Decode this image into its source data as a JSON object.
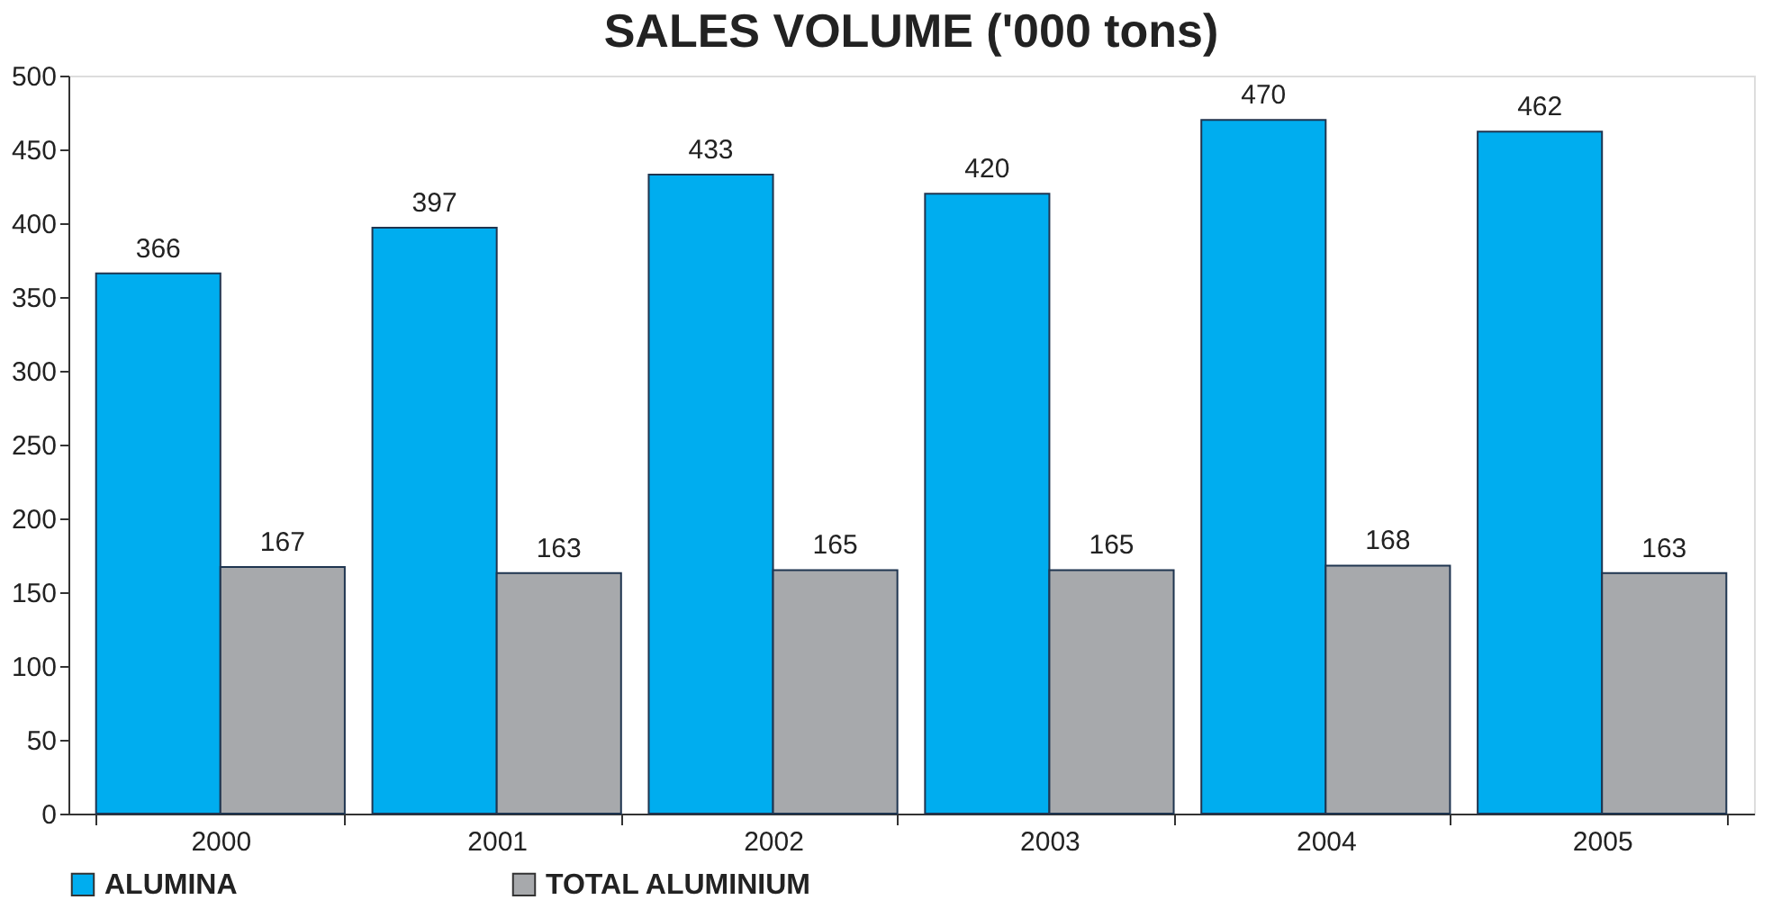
{
  "chart_data": {
    "type": "bar",
    "title": "SALES VOLUME ('000 tons)",
    "categories": [
      "2000",
      "2001",
      "2002",
      "2003",
      "2004",
      "2005"
    ],
    "series": [
      {
        "name": "ALUMINA",
        "color": "#00adef",
        "values": [
          366,
          397,
          433,
          420,
          470,
          462
        ]
      },
      {
        "name": "TOTAL ALUMINIUM",
        "color": "#a7a9ac",
        "values": [
          167,
          163,
          165,
          165,
          168,
          163
        ]
      }
    ],
    "ylim": [
      0,
      500
    ],
    "yticks": [
      0,
      50,
      100,
      150,
      200,
      250,
      300,
      350,
      400,
      450,
      500
    ],
    "data_labels": true,
    "grid": false,
    "legend": "bottom"
  }
}
